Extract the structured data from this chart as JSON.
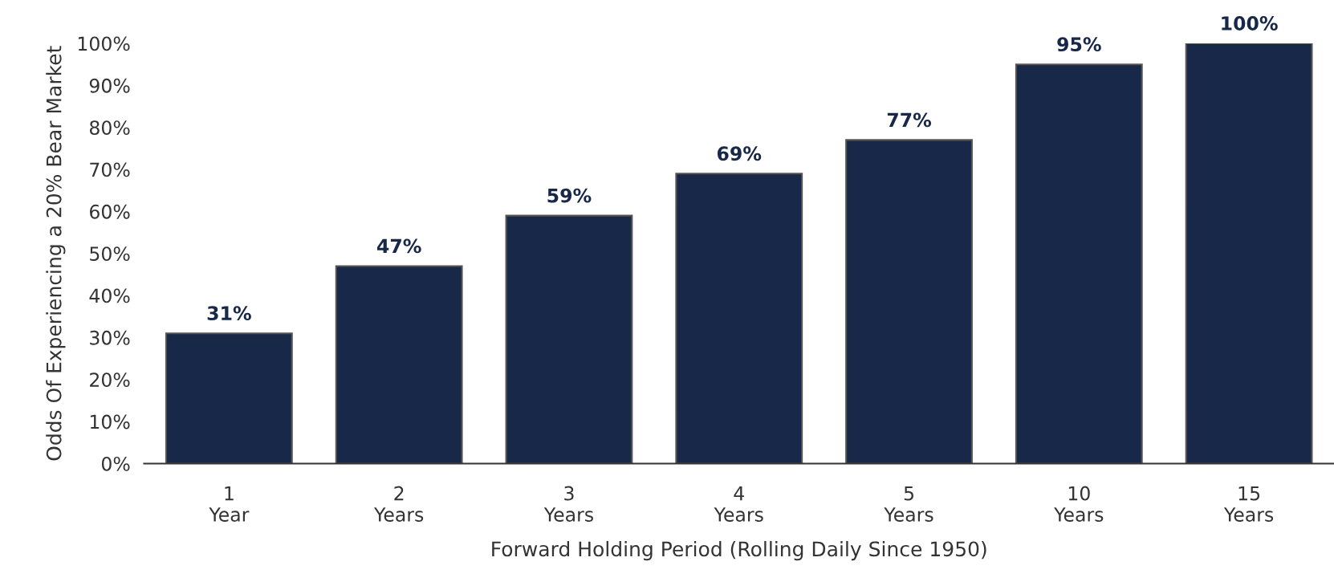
{
  "chart_data": {
    "type": "bar",
    "categories": [
      "1\nYear",
      "2\nYears",
      "3\nYears",
      "4\nYears",
      "5\nYears",
      "10\nYears",
      "15\nYears"
    ],
    "values": [
      31,
      47,
      59,
      69,
      77,
      95,
      100
    ],
    "value_labels": [
      "31%",
      "47%",
      "59%",
      "69%",
      "77%",
      "95%",
      "100%"
    ],
    "color": "#172849",
    "xlabel": "Forward Holding Period (Rolling Daily Since 1950)",
    "ylabel": "Odds Of Experiencing a 20% Bear Market",
    "ylim": [
      0,
      100
    ],
    "yticks": [
      {
        "value": 0,
        "label": "0%"
      },
      {
        "value": 10,
        "label": "10%"
      },
      {
        "value": 20,
        "label": "20%"
      },
      {
        "value": 30,
        "label": "30%"
      },
      {
        "value": 40,
        "label": "40%"
      },
      {
        "value": 50,
        "label": "50%"
      },
      {
        "value": 60,
        "label": "60%"
      },
      {
        "value": 70,
        "label": "70%"
      },
      {
        "value": 80,
        "label": "80%"
      },
      {
        "value": 90,
        "label": "90%"
      },
      {
        "value": 100,
        "label": "100%"
      }
    ],
    "grid": false
  }
}
